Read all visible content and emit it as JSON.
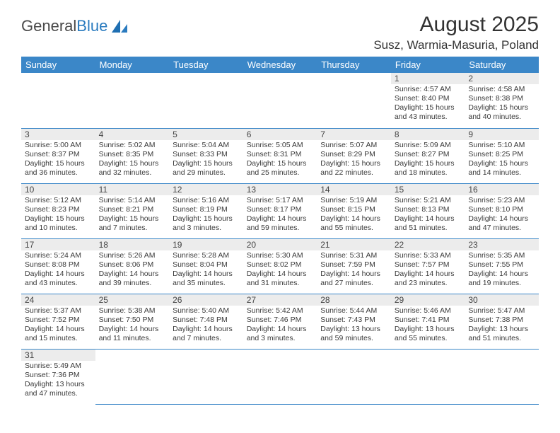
{
  "brand": {
    "part1": "General",
    "part2": "Blue"
  },
  "title": "August 2025",
  "location": "Susz, Warmia-Masuria, Poland",
  "colors": {
    "header_bg": "#3b87c8",
    "header_text": "#ffffff",
    "daynum_bg": "#ececec",
    "row_border": "#3b87c8",
    "text": "#3a3a3a",
    "title_color": "#333333"
  },
  "weekdays": [
    "Sunday",
    "Monday",
    "Tuesday",
    "Wednesday",
    "Thursday",
    "Friday",
    "Saturday"
  ],
  "weeks": [
    [
      null,
      null,
      null,
      null,
      null,
      {
        "n": "1",
        "sr": "4:57 AM",
        "ss": "8:40 PM",
        "dl": "15 hours and 43 minutes."
      },
      {
        "n": "2",
        "sr": "4:58 AM",
        "ss": "8:38 PM",
        "dl": "15 hours and 40 minutes."
      }
    ],
    [
      {
        "n": "3",
        "sr": "5:00 AM",
        "ss": "8:37 PM",
        "dl": "15 hours and 36 minutes."
      },
      {
        "n": "4",
        "sr": "5:02 AM",
        "ss": "8:35 PM",
        "dl": "15 hours and 32 minutes."
      },
      {
        "n": "5",
        "sr": "5:04 AM",
        "ss": "8:33 PM",
        "dl": "15 hours and 29 minutes."
      },
      {
        "n": "6",
        "sr": "5:05 AM",
        "ss": "8:31 PM",
        "dl": "15 hours and 25 minutes."
      },
      {
        "n": "7",
        "sr": "5:07 AM",
        "ss": "8:29 PM",
        "dl": "15 hours and 22 minutes."
      },
      {
        "n": "8",
        "sr": "5:09 AM",
        "ss": "8:27 PM",
        "dl": "15 hours and 18 minutes."
      },
      {
        "n": "9",
        "sr": "5:10 AM",
        "ss": "8:25 PM",
        "dl": "15 hours and 14 minutes."
      }
    ],
    [
      {
        "n": "10",
        "sr": "5:12 AM",
        "ss": "8:23 PM",
        "dl": "15 hours and 10 minutes."
      },
      {
        "n": "11",
        "sr": "5:14 AM",
        "ss": "8:21 PM",
        "dl": "15 hours and 7 minutes."
      },
      {
        "n": "12",
        "sr": "5:16 AM",
        "ss": "8:19 PM",
        "dl": "15 hours and 3 minutes."
      },
      {
        "n": "13",
        "sr": "5:17 AM",
        "ss": "8:17 PM",
        "dl": "14 hours and 59 minutes."
      },
      {
        "n": "14",
        "sr": "5:19 AM",
        "ss": "8:15 PM",
        "dl": "14 hours and 55 minutes."
      },
      {
        "n": "15",
        "sr": "5:21 AM",
        "ss": "8:13 PM",
        "dl": "14 hours and 51 minutes."
      },
      {
        "n": "16",
        "sr": "5:23 AM",
        "ss": "8:10 PM",
        "dl": "14 hours and 47 minutes."
      }
    ],
    [
      {
        "n": "17",
        "sr": "5:24 AM",
        "ss": "8:08 PM",
        "dl": "14 hours and 43 minutes."
      },
      {
        "n": "18",
        "sr": "5:26 AM",
        "ss": "8:06 PM",
        "dl": "14 hours and 39 minutes."
      },
      {
        "n": "19",
        "sr": "5:28 AM",
        "ss": "8:04 PM",
        "dl": "14 hours and 35 minutes."
      },
      {
        "n": "20",
        "sr": "5:30 AM",
        "ss": "8:02 PM",
        "dl": "14 hours and 31 minutes."
      },
      {
        "n": "21",
        "sr": "5:31 AM",
        "ss": "7:59 PM",
        "dl": "14 hours and 27 minutes."
      },
      {
        "n": "22",
        "sr": "5:33 AM",
        "ss": "7:57 PM",
        "dl": "14 hours and 23 minutes."
      },
      {
        "n": "23",
        "sr": "5:35 AM",
        "ss": "7:55 PM",
        "dl": "14 hours and 19 minutes."
      }
    ],
    [
      {
        "n": "24",
        "sr": "5:37 AM",
        "ss": "7:52 PM",
        "dl": "14 hours and 15 minutes."
      },
      {
        "n": "25",
        "sr": "5:38 AM",
        "ss": "7:50 PM",
        "dl": "14 hours and 11 minutes."
      },
      {
        "n": "26",
        "sr": "5:40 AM",
        "ss": "7:48 PM",
        "dl": "14 hours and 7 minutes."
      },
      {
        "n": "27",
        "sr": "5:42 AM",
        "ss": "7:46 PM",
        "dl": "14 hours and 3 minutes."
      },
      {
        "n": "28",
        "sr": "5:44 AM",
        "ss": "7:43 PM",
        "dl": "13 hours and 59 minutes."
      },
      {
        "n": "29",
        "sr": "5:46 AM",
        "ss": "7:41 PM",
        "dl": "13 hours and 55 minutes."
      },
      {
        "n": "30",
        "sr": "5:47 AM",
        "ss": "7:38 PM",
        "dl": "13 hours and 51 minutes."
      }
    ],
    [
      {
        "n": "31",
        "sr": "5:49 AM",
        "ss": "7:36 PM",
        "dl": "13 hours and 47 minutes."
      },
      null,
      null,
      null,
      null,
      null,
      null
    ]
  ],
  "labels": {
    "sunrise": "Sunrise:",
    "sunset": "Sunset:",
    "daylight": "Daylight:"
  }
}
